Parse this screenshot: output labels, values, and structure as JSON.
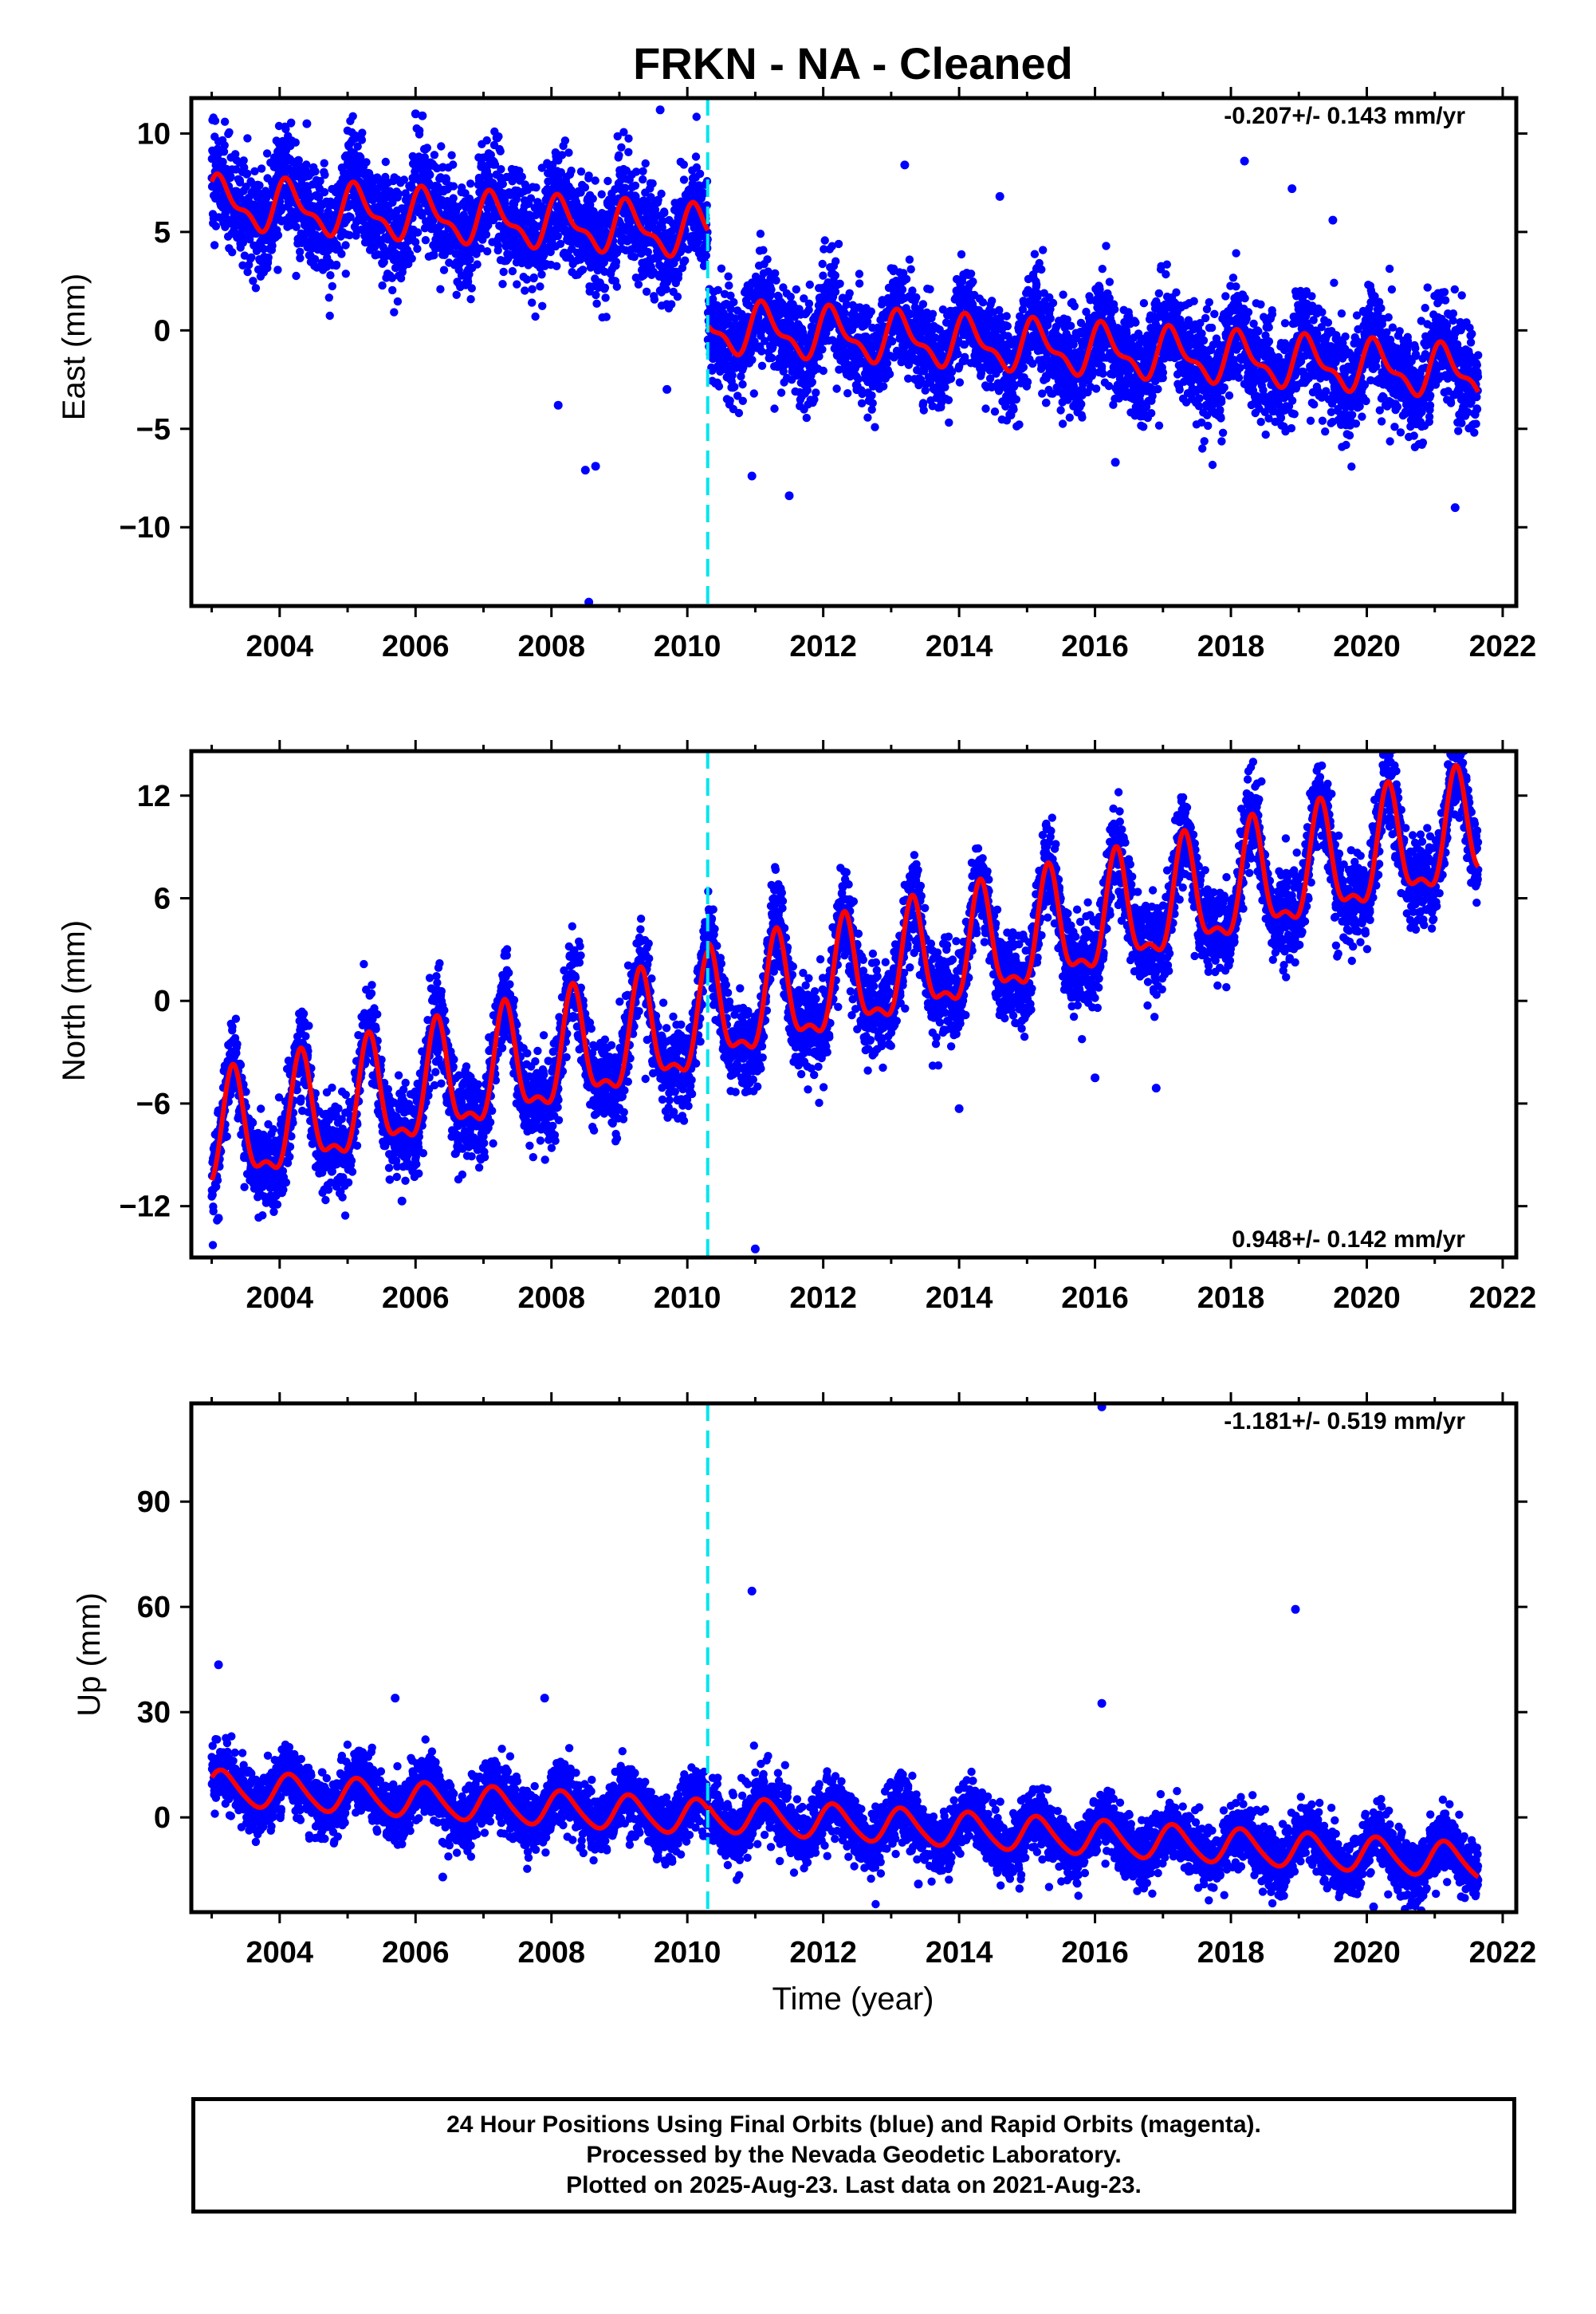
{
  "title": "FRKN  - NA - Cleaned",
  "xlabel": "Time (year)",
  "footer": {
    "line1": "24 Hour Positions Using Final Orbits (blue) and Rapid Orbits (magenta).",
    "line2": "Processed by the Nevada Geodetic Laboratory.",
    "line3": "Plotted on 2025-Aug-23. Last data on 2021-Aug-23."
  },
  "colors": {
    "points": "#0000ff",
    "model": "#ff0000",
    "offset_line": "#00e5ee",
    "frame": "#000000"
  },
  "chart_data": [
    {
      "type": "scatter",
      "ylabel": "East (mm)",
      "rate_text": "-0.207+/- 0.143 mm/yr",
      "rate_position": "top-right",
      "xlim": [
        2002.7,
        2022.2
      ],
      "ylim": [
        -14,
        11.8
      ],
      "xticks": [
        2004,
        2006,
        2008,
        2010,
        2012,
        2014,
        2016,
        2018,
        2020,
        2022
      ],
      "yticks": [
        10,
        5,
        0,
        -5,
        -10
      ],
      "ytick_labels": [
        "10",
        "5",
        "0",
        "−5",
        "−10"
      ],
      "data_span": [
        2003.0,
        2021.64
      ],
      "offset_epoch": 2010.3,
      "model": {
        "ref_year": 2011,
        "rate": -0.207,
        "offset_before": 4.8,
        "offset_after": 0.0,
        "annual_sin": 0.9,
        "annual_cos": 0.7,
        "semiannual_sin": 0.3,
        "semiannual_cos": 0.4
      },
      "scatter_noise_sigma": 1.3,
      "outliers": [
        [
          2004.4,
          10.5
        ],
        [
          2006.0,
          11.0
        ],
        [
          2006.1,
          10.9
        ],
        [
          2008.5,
          -7.1
        ],
        [
          2008.65,
          -6.9
        ],
        [
          2008.55,
          -13.8
        ],
        [
          2008.1,
          -3.8
        ],
        [
          2009.6,
          11.2
        ],
        [
          2009.7,
          -3.0
        ],
        [
          2013.2,
          8.4
        ],
        [
          2014.6,
          6.8
        ],
        [
          2018.2,
          8.6
        ],
        [
          2018.9,
          7.2
        ],
        [
          2010.95,
          -7.4
        ],
        [
          2011.5,
          -8.4
        ],
        [
          2019.5,
          5.6
        ],
        [
          2021.3,
          -9.0
        ],
        [
          2016.3,
          -6.7
        ]
      ]
    },
    {
      "type": "scatter",
      "ylabel": "North (mm)",
      "rate_text": "0.948+/- 0.142 mm/yr",
      "rate_position": "bottom-right",
      "xlim": [
        2002.7,
        2022.2
      ],
      "ylim": [
        -15,
        14.6
      ],
      "xticks": [
        2004,
        2006,
        2008,
        2010,
        2012,
        2014,
        2016,
        2018,
        2020,
        2022
      ],
      "yticks": [
        12,
        6,
        0,
        -6,
        -12
      ],
      "ytick_labels": [
        "12",
        "6",
        "0",
        "−6",
        "−12"
      ],
      "data_span": [
        2003.0,
        2021.64
      ],
      "offset_epoch": 2010.3,
      "model": {
        "ref_year": 2011,
        "rate": 0.948,
        "offset_before": -0.7,
        "offset_after": -0.3,
        "annual_sin": 2.8,
        "annual_cos": -1.3,
        "semiannual_sin": -0.8,
        "semiannual_cos": -0.9
      },
      "scatter_noise_sigma": 1.3,
      "outliers": [
        [
          2003.1,
          -12.7
        ],
        [
          2011.0,
          -14.5
        ],
        [
          2014.0,
          -6.3
        ],
        [
          2016.0,
          -4.5
        ],
        [
          2016.9,
          -5.1
        ],
        [
          2017.0,
          3.0
        ],
        [
          2005.8,
          -11.7
        ]
      ]
    },
    {
      "type": "scatter",
      "ylabel": "Up (mm)",
      "rate_text": "-1.181+/- 0.519 mm/yr",
      "rate_position": "top-right",
      "xlim": [
        2002.7,
        2022.2
      ],
      "ylim": [
        -27,
        118
      ],
      "xticks": [
        2004,
        2006,
        2008,
        2010,
        2012,
        2014,
        2016,
        2018,
        2020,
        2022
      ],
      "yticks": [
        90,
        60,
        30,
        0
      ],
      "ytick_labels": [
        "90",
        "60",
        "30",
        "0"
      ],
      "data_span": [
        2003.0,
        2021.64
      ],
      "offset_epoch": 2010.3,
      "model": {
        "ref_year": 2011,
        "rate": -1.181,
        "offset_before": -1.0,
        "offset_after": 0.0,
        "annual_sin": 4.2,
        "annual_cos": 2.5,
        "semiannual_sin": 0.5,
        "semiannual_cos": 0.4
      },
      "scatter_noise_sigma": 4.3,
      "outliers": [
        [
          2003.1,
          43.5
        ],
        [
          2005.7,
          34.0
        ],
        [
          2007.9,
          34.0
        ],
        [
          2010.95,
          64.5
        ],
        [
          2016.1,
          117.0
        ],
        [
          2016.1,
          32.5
        ],
        [
          2018.95,
          59.3
        ],
        [
          2006.4,
          -17.0
        ],
        [
          2013.4,
          -19.0
        ],
        [
          2020.1,
          -25.5
        ]
      ]
    }
  ]
}
